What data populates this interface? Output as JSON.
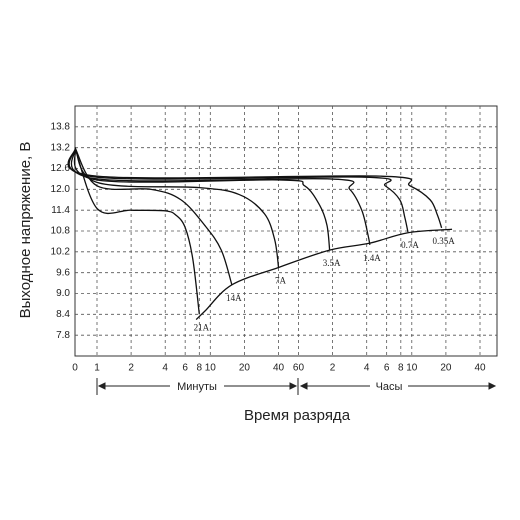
{
  "chart_data": {
    "type": "line",
    "xlabel": "Время разряда",
    "ylabel": "Выходное напряжение, В",
    "annotations": [
      "Минуты",
      "Часы"
    ],
    "log_x": true,
    "grid": true,
    "color": "#111111",
    "xlim": [
      0,
      3390
    ],
    "ylim": [
      7.2,
      14.4
    ],
    "xticks": [
      0,
      1,
      2,
      4,
      6,
      8,
      10,
      20,
      40,
      60,
      {
        "value": 120,
        "label": "2"
      },
      {
        "value": 240,
        "label": "4"
      },
      {
        "value": 360,
        "label": "6"
      },
      {
        "value": 480,
        "label": "8"
      },
      {
        "value": 600,
        "label": "10"
      },
      {
        "value": 1200,
        "label": "20"
      },
      {
        "value": 2400,
        "label": "40"
      }
    ],
    "yticks": [
      7.8,
      8.4,
      {
        "value": 9,
        "label": "9.0"
      },
      9.6,
      10.2,
      10.8,
      11.4,
      {
        "value": 12,
        "label": "12.0"
      },
      12.6,
      13.2,
      13.8
    ],
    "series": [
      {
        "name": "21A",
        "color": "#111111",
        "x": [
          0,
          1,
          2,
          4,
          5,
          6,
          7,
          8
        ],
        "values": [
          13.2,
          11.45,
          11.4,
          11.38,
          11.25,
          10.9,
          10.0,
          8.4
        ]
      },
      {
        "name": "14A",
        "color": "#111111",
        "x": [
          0,
          1,
          3,
          5.5,
          9,
          12.5,
          15.5
        ],
        "values": [
          13.2,
          12.1,
          12.0,
          11.7,
          10.95,
          10.25,
          9.25
        ]
      },
      {
        "name": "7A",
        "color": "#111111",
        "x": [
          0,
          1,
          8,
          18,
          30,
          37,
          40
        ],
        "values": [
          13.2,
          12.2,
          12.05,
          11.85,
          11.3,
          10.55,
          9.75
        ]
      },
      {
        "name": "3.5A",
        "color": "#111111",
        "x": [
          0,
          1,
          41,
          68,
          92,
          107,
          113
        ],
        "values": [
          13.2,
          12.27,
          12.27,
          12.1,
          11.55,
          10.97,
          10.25
        ]
      },
      {
        "name": "1.4A",
        "color": "#111111",
        "x": [
          0,
          1,
          114,
          170,
          217,
          246,
          256
        ],
        "values": [
          13.2,
          12.3,
          12.3,
          12.0,
          11.4,
          10.7,
          10.4
        ]
      },
      {
        "name": "0.7A",
        "color": "#111111",
        "x": [
          0,
          1,
          230,
          350,
          470,
          520,
          555
        ],
        "values": [
          13.2,
          12.35,
          12.35,
          12.1,
          11.7,
          11.2,
          10.77
        ]
      },
      {
        "name": "0.35A",
        "color": "#111111",
        "x": [
          0,
          1,
          315,
          580,
          870,
          1010,
          1100
        ],
        "values": [
          13.2,
          12.38,
          12.38,
          12.1,
          11.7,
          11.26,
          10.89
        ]
      },
      {
        "color": "#111111",
        "x": [
          7.5,
          9,
          15.5,
          40,
          113,
          256,
          555,
          1360
        ],
        "values": [
          8.25,
          8.5,
          9.25,
          9.75,
          10.25,
          10.45,
          10.75,
          10.85
        ]
      }
    ]
  }
}
